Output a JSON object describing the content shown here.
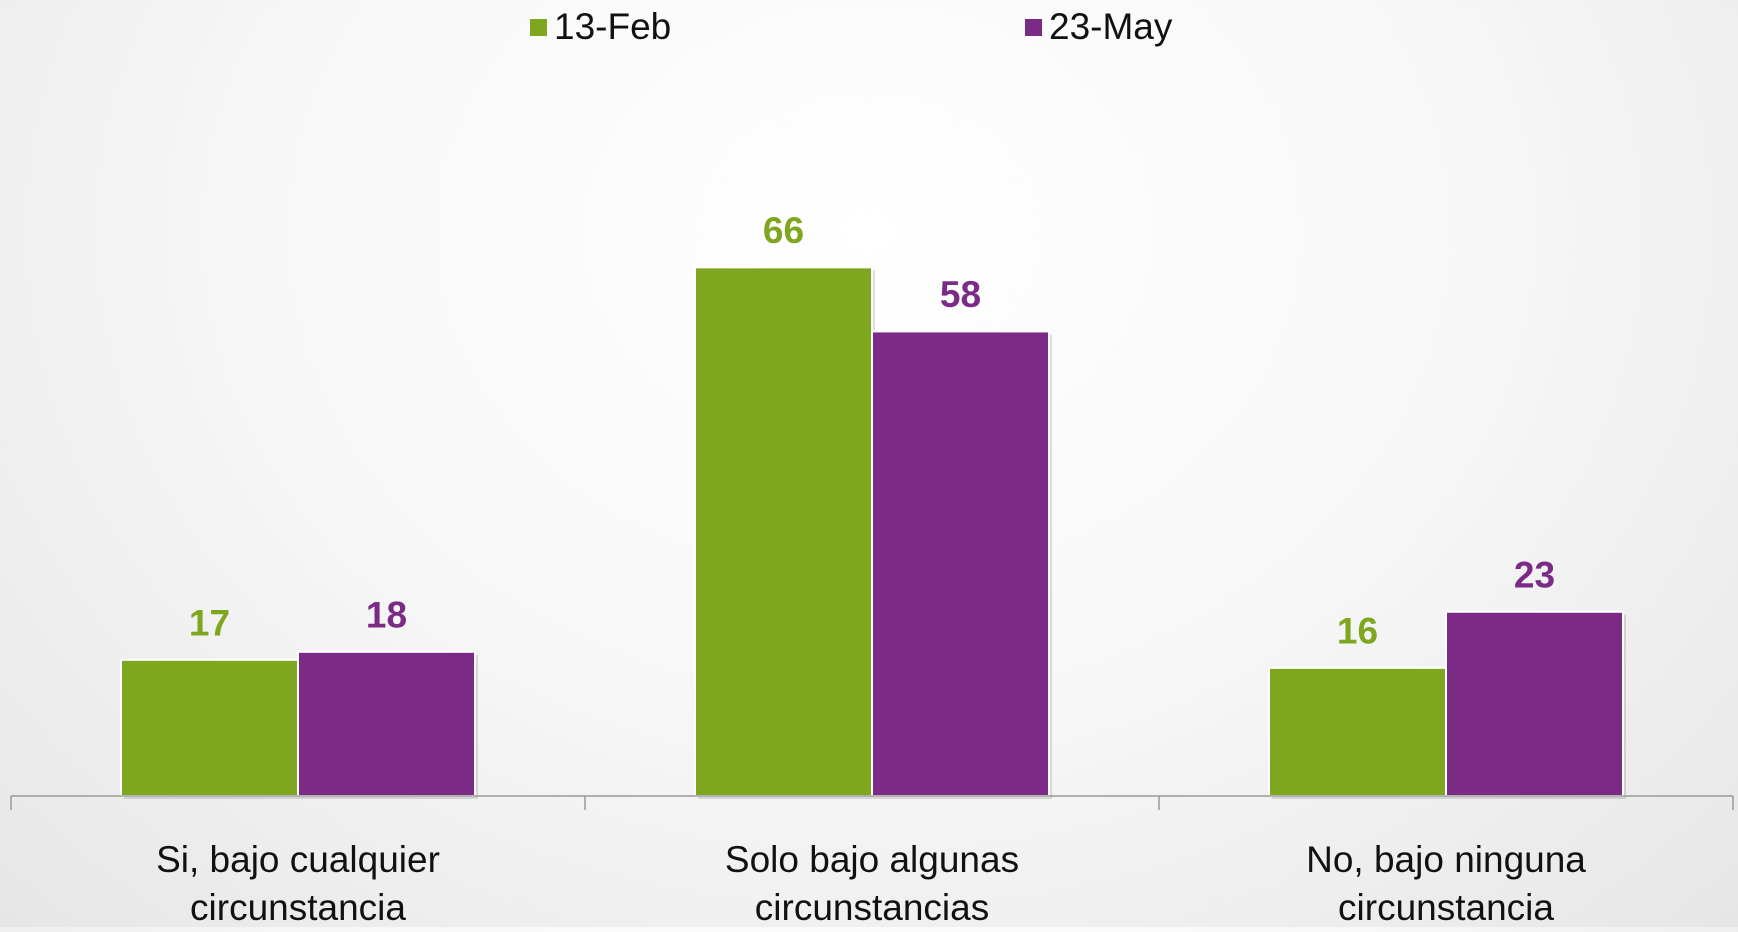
{
  "chart_data": {
    "type": "bar",
    "categories": [
      "Si, bajo cualquier circunstancia",
      "Solo bajo algunas circunstancias",
      "No, bajo ninguna circunstancia"
    ],
    "series": [
      {
        "name": "13-Feb",
        "color": "#7ea71f",
        "values": [
          17,
          66,
          16
        ]
      },
      {
        "name": "23-May",
        "color": "#7b2b86",
        "values": [
          18,
          58,
          23
        ]
      }
    ],
    "ylim": [
      0,
      100
    ],
    "legend": "top"
  }
}
